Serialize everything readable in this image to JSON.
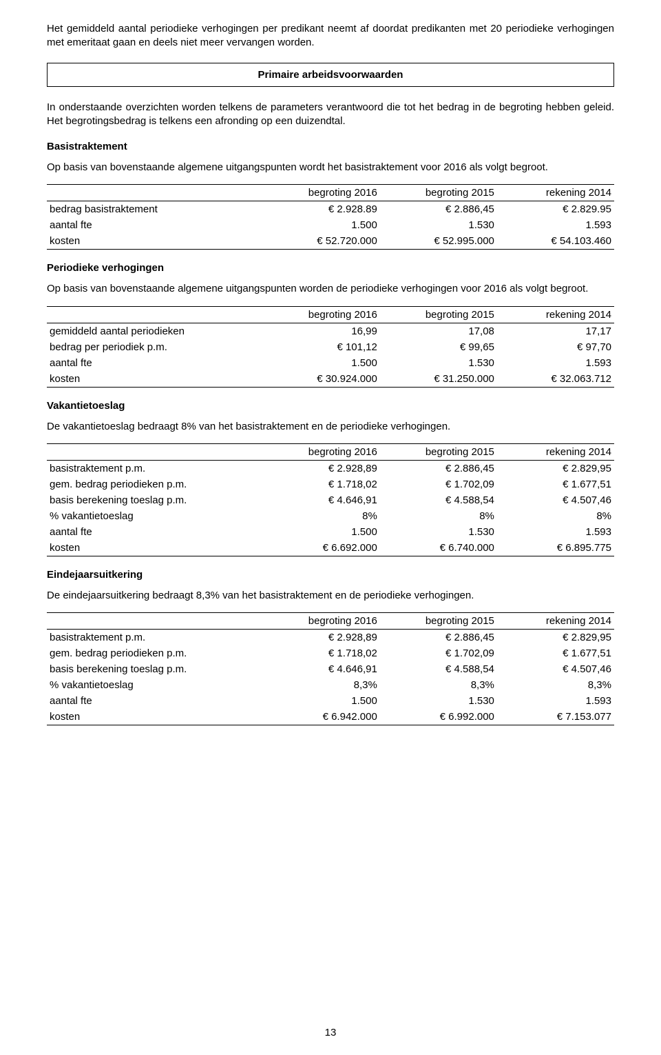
{
  "intro_para": "Het gemiddeld aantal periodieke verhogingen per predikant neemt af doordat predikanten met 20 periodieke verhogingen met emeritaat gaan en deels niet meer vervangen worden.",
  "box_title": "Primaire arbeidsvoorwaarden",
  "after_box_para": "In onderstaande overzichten worden telkens de parameters verantwoord die tot het bedrag in de begroting hebben geleid. Het begrotingsbedrag is telkens een afronding op een duizendtal.",
  "headers": {
    "c1": "begroting 2016",
    "c2": "begroting 2015",
    "c3": "rekening 2014"
  },
  "section1": {
    "title": "Basistraktement",
    "para": "Op basis van bovenstaande algemene uitgangspunten wordt het basistraktement voor 2016 als volgt begroot.",
    "rows": [
      {
        "label": "bedrag basistraktement",
        "c1": "€ 2.928.89",
        "c2": "€ 2.886,45",
        "c3": "€ 2.829.95"
      },
      {
        "label": "aantal fte",
        "c1": "1.500",
        "c2": "1.530",
        "c3": "1.593"
      },
      {
        "label": "kosten",
        "c1": "€ 52.720.000",
        "c2": "€ 52.995.000",
        "c3": "€ 54.103.460"
      }
    ]
  },
  "section2": {
    "title": "Periodieke verhogingen",
    "para": "Op basis van bovenstaande algemene uitgangspunten worden de periodieke verhogingen voor 2016 als volgt begroot.",
    "rows": [
      {
        "label": "gemiddeld aantal periodieken",
        "c1": "16,99",
        "c2": "17,08",
        "c3": "17,17"
      },
      {
        "label": "bedrag per periodiek p.m.",
        "c1": "€ 101,12",
        "c2": "€ 99,65",
        "c3": "€ 97,70"
      },
      {
        "label": "aantal fte",
        "c1": "1.500",
        "c2": "1.530",
        "c3": "1.593"
      },
      {
        "label": "kosten",
        "c1": "€ 30.924.000",
        "c2": "€ 31.250.000",
        "c3": "€ 32.063.712"
      }
    ]
  },
  "section3": {
    "title": "Vakantietoeslag",
    "para": "De vakantietoeslag bedraagt 8% van het basistraktement en de periodieke verhogingen.",
    "rows": [
      {
        "label": "basistraktement p.m.",
        "c1": "€ 2.928,89",
        "c2": "€ 2.886,45",
        "c3": "€ 2.829,95"
      },
      {
        "label": "gem. bedrag periodieken p.m.",
        "c1": "€ 1.718,02",
        "c2": "€ 1.702,09",
        "c3": "€ 1.677,51"
      },
      {
        "label": "basis berekening toeslag p.m.",
        "c1": "€ 4.646,91",
        "c2": "€ 4.588,54",
        "c3": "€ 4.507,46"
      },
      {
        "label": "% vakantietoeslag",
        "c1": "8%",
        "c2": "8%",
        "c3": "8%"
      },
      {
        "label": "aantal fte",
        "c1": "1.500",
        "c2": "1.530",
        "c3": "1.593"
      },
      {
        "label": "kosten",
        "c1": "€ 6.692.000",
        "c2": "€ 6.740.000",
        "c3": "€ 6.895.775"
      }
    ]
  },
  "section4": {
    "title": "Eindejaarsuitkering",
    "para": "De eindejaarsuitkering bedraagt 8,3% van het basistraktement en de periodieke verhogingen.",
    "rows": [
      {
        "label": "basistraktement p.m.",
        "c1": "€ 2.928,89",
        "c2": "€ 2.886,45",
        "c3": "€ 2.829,95"
      },
      {
        "label": "gem. bedrag periodieken p.m.",
        "c1": "€ 1.718,02",
        "c2": "€ 1.702,09",
        "c3": "€ 1.677,51"
      },
      {
        "label": "basis berekening toeslag p.m.",
        "c1": "€ 4.646,91",
        "c2": "€ 4.588,54",
        "c3": "€ 4.507,46"
      },
      {
        "label": "% vakantietoeslag",
        "c1": "8,3%",
        "c2": "8,3%",
        "c3": "8,3%"
      },
      {
        "label": "aantal fte",
        "c1": "1.500",
        "c2": "1.530",
        "c3": "1.593"
      },
      {
        "label": "kosten",
        "c1": "€ 6.942.000",
        "c2": "€ 6.992.000",
        "c3": "€ 7.153.077"
      }
    ]
  },
  "page_number": "13"
}
